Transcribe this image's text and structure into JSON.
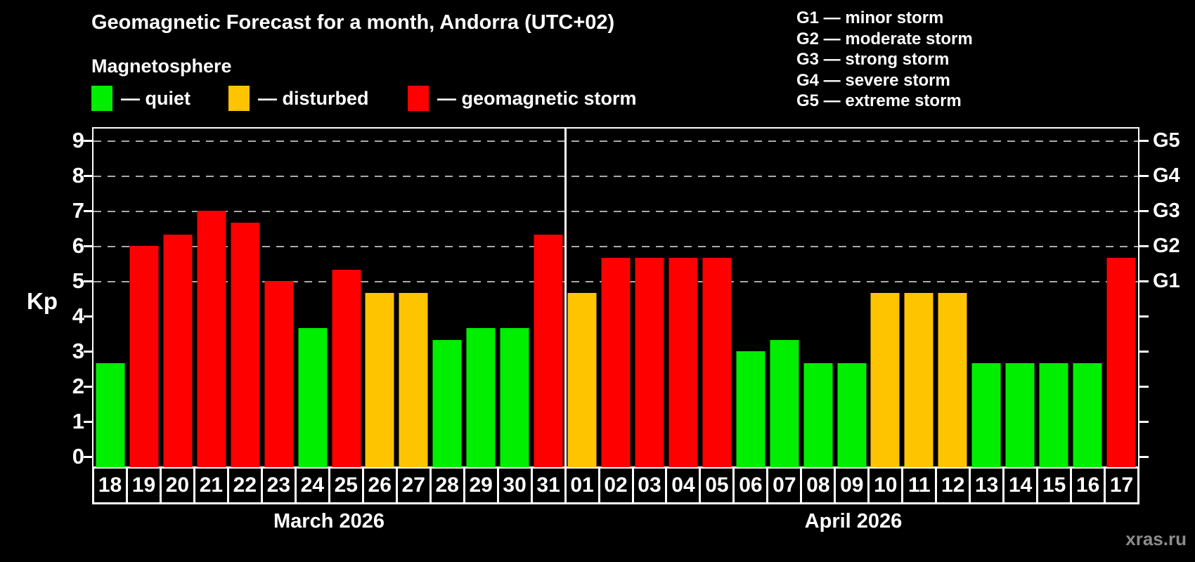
{
  "title": "Geomagnetic Forecast for a month, Andorra (UTC+02)",
  "subtitle": "Magnetosphere",
  "watermark": "xras.ru",
  "legend": {
    "items": [
      {
        "name": "quiet",
        "label": "— quiet",
        "color": "#00ee00"
      },
      {
        "name": "disturbed",
        "label": "— disturbed",
        "color": "#ffc400"
      },
      {
        "name": "storm",
        "label": "— geomagnetic storm",
        "color": "#ff0000"
      }
    ]
  },
  "storm_scale_legend": [
    "G1 — minor storm",
    "G2 — moderate storm",
    "G3 — strong storm",
    "G4 — severe storm",
    "G5 — extreme storm"
  ],
  "chart_data": {
    "type": "bar",
    "title": "Geomagnetic Forecast for a month, Andorra (UTC+02)",
    "ylabel": "Kp",
    "ylim": [
      0,
      9
    ],
    "yticks": [
      0,
      1,
      2,
      3,
      4,
      5,
      6,
      7,
      8,
      9
    ],
    "gridline_values": [
      5,
      6,
      7,
      8,
      9
    ],
    "grid": "dashed-horizontal",
    "legend_position": "top",
    "right_axis": [
      {
        "value": 5,
        "label": "G1"
      },
      {
        "value": 6,
        "label": "G2"
      },
      {
        "value": 7,
        "label": "G3"
      },
      {
        "value": 8,
        "label": "G4"
      },
      {
        "value": 9,
        "label": "G5"
      }
    ],
    "months": [
      {
        "label": "March 2026",
        "start_index": 0,
        "num_days": 14
      },
      {
        "label": "April 2026",
        "start_index": 14,
        "num_days": 17
      }
    ],
    "categories": [
      "18",
      "19",
      "20",
      "21",
      "22",
      "23",
      "24",
      "25",
      "26",
      "27",
      "28",
      "29",
      "30",
      "31",
      "01",
      "02",
      "03",
      "04",
      "05",
      "06",
      "07",
      "08",
      "09",
      "10",
      "11",
      "12",
      "13",
      "14",
      "15",
      "16",
      "17"
    ],
    "series": [
      {
        "name": "Kp forecast",
        "values": [
          2.67,
          6,
          6.33,
          7,
          6.67,
          5,
          3.67,
          5.33,
          4.67,
          4.67,
          3.33,
          3.67,
          3.67,
          6.33,
          4.67,
          5.67,
          5.67,
          5.67,
          5.67,
          3,
          3.33,
          2.67,
          2.67,
          4.67,
          4.67,
          4.67,
          2.67,
          2.67,
          2.67,
          2.67,
          5.67
        ]
      }
    ],
    "statuses": [
      "quiet",
      "storm",
      "storm",
      "storm",
      "storm",
      "storm",
      "quiet",
      "storm",
      "disturbed",
      "disturbed",
      "quiet",
      "quiet",
      "quiet",
      "storm",
      "disturbed",
      "storm",
      "storm",
      "storm",
      "storm",
      "quiet",
      "quiet",
      "quiet",
      "quiet",
      "disturbed",
      "disturbed",
      "disturbed",
      "quiet",
      "quiet",
      "quiet",
      "quiet",
      "storm"
    ],
    "status_colors": {
      "quiet": "#00ee00",
      "disturbed": "#ffc400",
      "storm": "#ff0000"
    }
  }
}
